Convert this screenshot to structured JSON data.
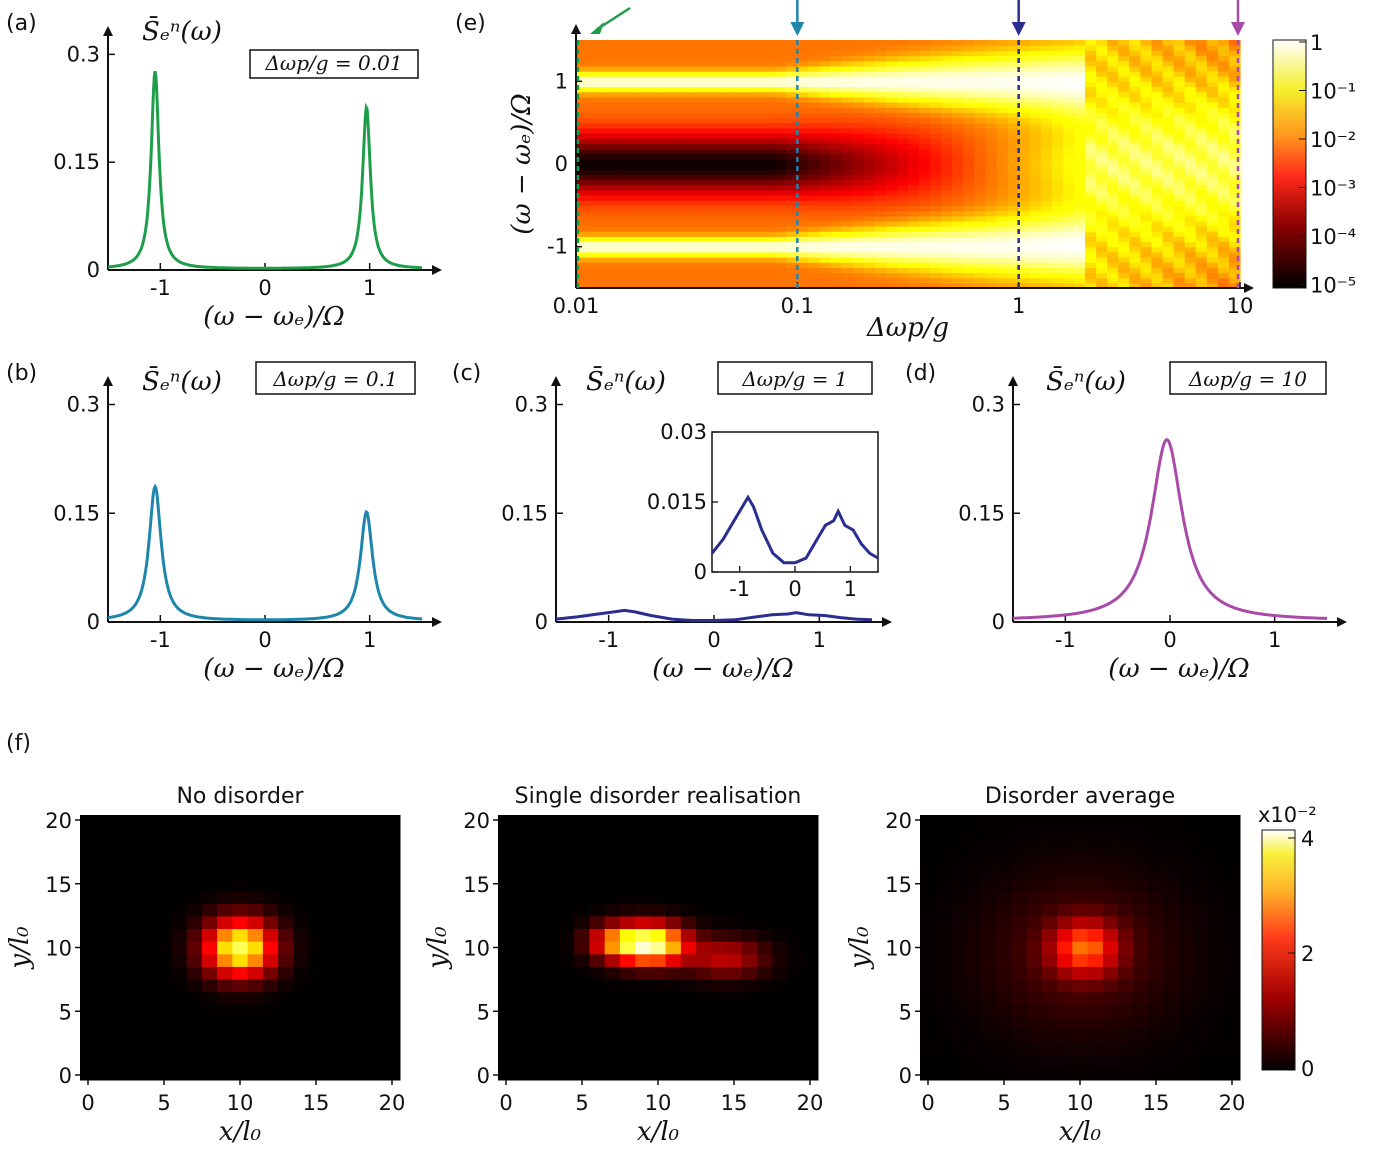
{
  "panel_labels": {
    "a": "(a)",
    "b": "(b)",
    "c": "(c)",
    "d": "(d)",
    "e": "(e)",
    "f": "(f)"
  },
  "spectrum_ylabel": "S̄ₑⁿ(ω)",
  "spectrum_xlabel": "(ω − ωₑ)/Ω",
  "colors": {
    "a": "#1e9e4a",
    "b": "#1e86ad",
    "c": "#2a2f8f",
    "d": "#a94aa8"
  },
  "chart_data": [
    {
      "id": "a",
      "type": "line",
      "title": "Δωp/g = 0.01",
      "xlabel": "(ω − ωₑ)/Ω",
      "ylabel": "S̄ₑⁿ(ω)",
      "xlim": [
        -1.5,
        1.5
      ],
      "ylim": [
        0,
        0.32
      ],
      "xticks": [
        "-1",
        "0",
        "1"
      ],
      "yticks": [
        "0",
        "0.15",
        "0.3"
      ],
      "peaks": [
        {
          "x": -1.05,
          "height": 0.275,
          "width": 0.045
        },
        {
          "x": 0.97,
          "height": 0.225,
          "width": 0.045
        }
      ]
    },
    {
      "id": "b",
      "type": "line",
      "title": "Δωp/g = 0.1",
      "xlabel": "(ω − ωₑ)/Ω",
      "ylabel": "S̄ₑⁿ(ω)",
      "xlim": [
        -1.5,
        1.5
      ],
      "ylim": [
        0,
        0.32
      ],
      "xticks": [
        "-1",
        "0",
        "1"
      ],
      "yticks": [
        "0",
        "0.15",
        "0.3"
      ],
      "peaks": [
        {
          "x": -1.05,
          "height": 0.185,
          "width": 0.07
        },
        {
          "x": 0.97,
          "height": 0.15,
          "width": 0.07
        }
      ]
    },
    {
      "id": "c",
      "type": "line",
      "title": "Δωp/g = 1",
      "xlabel": "(ω − ωₑ)/Ω",
      "ylabel": "S̄ₑⁿ(ω)",
      "xlim": [
        -1.5,
        1.5
      ],
      "ylim": [
        0,
        0.32
      ],
      "xticks": [
        "-1",
        "0",
        "1"
      ],
      "yticks": [
        "0",
        "0.15",
        "0.3"
      ],
      "x": [
        -1.5,
        -1.3,
        -1.1,
        -0.95,
        -0.85,
        -0.75,
        -0.6,
        -0.4,
        -0.2,
        0,
        0.2,
        0.4,
        0.55,
        0.7,
        0.78,
        0.9,
        1.05,
        1.2,
        1.35,
        1.5
      ],
      "y": [
        0.004,
        0.007,
        0.011,
        0.014,
        0.016,
        0.014,
        0.009,
        0.004,
        0.002,
        0.002,
        0.003,
        0.007,
        0.01,
        0.011,
        0.013,
        0.01,
        0.009,
        0.006,
        0.004,
        0.003
      ],
      "inset": {
        "xlim": [
          -1.5,
          1.5
        ],
        "ylim": [
          0,
          0.03
        ],
        "xticks": [
          "-1",
          "0",
          "1"
        ],
        "yticks": [
          "0",
          "0.015",
          "0.03"
        ]
      }
    },
    {
      "id": "d",
      "type": "line",
      "title": "Δωp/g = 10",
      "xlabel": "(ω − ωₑ)/Ω",
      "ylabel": "S̄ₑⁿ(ω)",
      "xlim": [
        -1.5,
        1.5
      ],
      "ylim": [
        0,
        0.32
      ],
      "xticks": [
        "-1",
        "0",
        "1"
      ],
      "yticks": [
        "0",
        "0.15",
        "0.3"
      ],
      "peaks": [
        {
          "x": -0.03,
          "height": 0.25,
          "width": 0.18
        }
      ]
    },
    {
      "id": "e",
      "type": "heatmap",
      "scale": "log",
      "xlabel": "Δωp/g",
      "ylabel": "(ω − ωₑ)/Ω",
      "xlim": [
        0.01,
        10
      ],
      "ylim": [
        -1.5,
        1.5
      ],
      "xticks": [
        "0.01",
        "0.1",
        "1",
        "10"
      ],
      "yticks": [
        "-1",
        "0",
        "1"
      ],
      "colorbar_ticks": [
        "1",
        "10⁻¹",
        "10⁻²",
        "10⁻³",
        "10⁻⁴",
        "10⁻⁵"
      ],
      "markers": [
        {
          "x": 0.01,
          "color": "#1e9e4a"
        },
        {
          "x": 0.1,
          "color": "#1e86ad"
        },
        {
          "x": 1,
          "color": "#2a2f8f"
        },
        {
          "x": 10,
          "color": "#a94aa8"
        }
      ]
    },
    {
      "id": "f1",
      "type": "heatmap",
      "title": "No disorder",
      "xlabel": "x/l₀",
      "ylabel": "y/l₀",
      "xlim": [
        0,
        20
      ],
      "ylim": [
        0,
        20
      ],
      "xticks": [
        "0",
        "5",
        "10",
        "15",
        "20"
      ],
      "yticks": [
        "0",
        "5",
        "10",
        "15",
        "20"
      ],
      "blobs": [
        {
          "cx": 10,
          "cy": 10,
          "sx": 1.6,
          "sy": 1.6,
          "amp": 0.035
        }
      ]
    },
    {
      "id": "f2",
      "type": "heatmap",
      "title": "Single disorder realisation",
      "xlabel": "x/l₀",
      "ylabel": "y/l₀",
      "xlim": [
        0,
        20
      ],
      "ylim": [
        0,
        20
      ],
      "xticks": [
        "0",
        "5",
        "10",
        "15",
        "20"
      ],
      "yticks": [
        "0",
        "5",
        "10",
        "15",
        "20"
      ],
      "blobs": [
        {
          "cx": 9.5,
          "cy": 10.3,
          "sx": 1.6,
          "sy": 1.1,
          "amp": 0.04
        },
        {
          "cx": 14.5,
          "cy": 9.2,
          "sx": 1.8,
          "sy": 1.1,
          "amp": 0.012
        },
        {
          "cx": 7,
          "cy": 10.5,
          "sx": 1.2,
          "sy": 1,
          "amp": 0.015
        }
      ]
    },
    {
      "id": "f3",
      "type": "heatmap",
      "title": "Disorder average",
      "xlabel": "x/l₀",
      "ylabel": "y/l₀",
      "xlim": [
        0,
        20
      ],
      "ylim": [
        0,
        20
      ],
      "xticks": [
        "0",
        "5",
        "10",
        "15",
        "20"
      ],
      "yticks": [
        "0",
        "5",
        "10",
        "15",
        "20"
      ],
      "blobs": [
        {
          "cx": 10.3,
          "cy": 10,
          "sx": 1.5,
          "sy": 1.5,
          "amp": 0.018
        },
        {
          "cx": 10,
          "cy": 9.5,
          "sx": 4.5,
          "sy": 4.5,
          "amp": 0.005
        }
      ],
      "colorbar_ticks": [
        "0",
        "2",
        "4"
      ],
      "colorbar_label": "x10⁻²"
    }
  ]
}
